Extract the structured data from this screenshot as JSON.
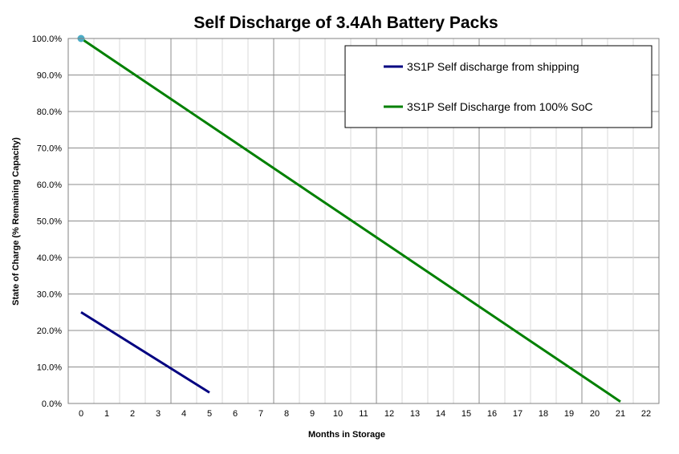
{
  "chart_data": {
    "type": "line",
    "title": "Self Discharge of 3.4Ah Battery Packs",
    "xlabel": "Months in Storage",
    "ylabel": "State of Charge (% Remaining Capacity)",
    "xlim": [
      0,
      22
    ],
    "ylim": [
      0,
      100
    ],
    "x_ticks": [
      0,
      1,
      2,
      3,
      4,
      5,
      6,
      7,
      8,
      9,
      10,
      11,
      12,
      13,
      14,
      15,
      16,
      17,
      18,
      19,
      20,
      21,
      22
    ],
    "y_ticks": [
      "0.0%",
      "10.0%",
      "20.0%",
      "30.0%",
      "40.0%",
      "50.0%",
      "60.0%",
      "70.0%",
      "80.0%",
      "90.0%",
      "100.0%"
    ],
    "grid": true,
    "legend_position": "top-right",
    "series": [
      {
        "name": "3S1P Self discharge from shipping",
        "color": "#000080",
        "x": [
          0,
          5
        ],
        "y": [
          25,
          3
        ]
      },
      {
        "name": "3S1P Self Discharge from 100% SoC",
        "color": "#008000",
        "x": [
          0,
          21
        ],
        "y": [
          100,
          0.5
        ]
      }
    ],
    "marker_point": {
      "x": 0,
      "y": 100,
      "color": "#4BACC6"
    }
  }
}
